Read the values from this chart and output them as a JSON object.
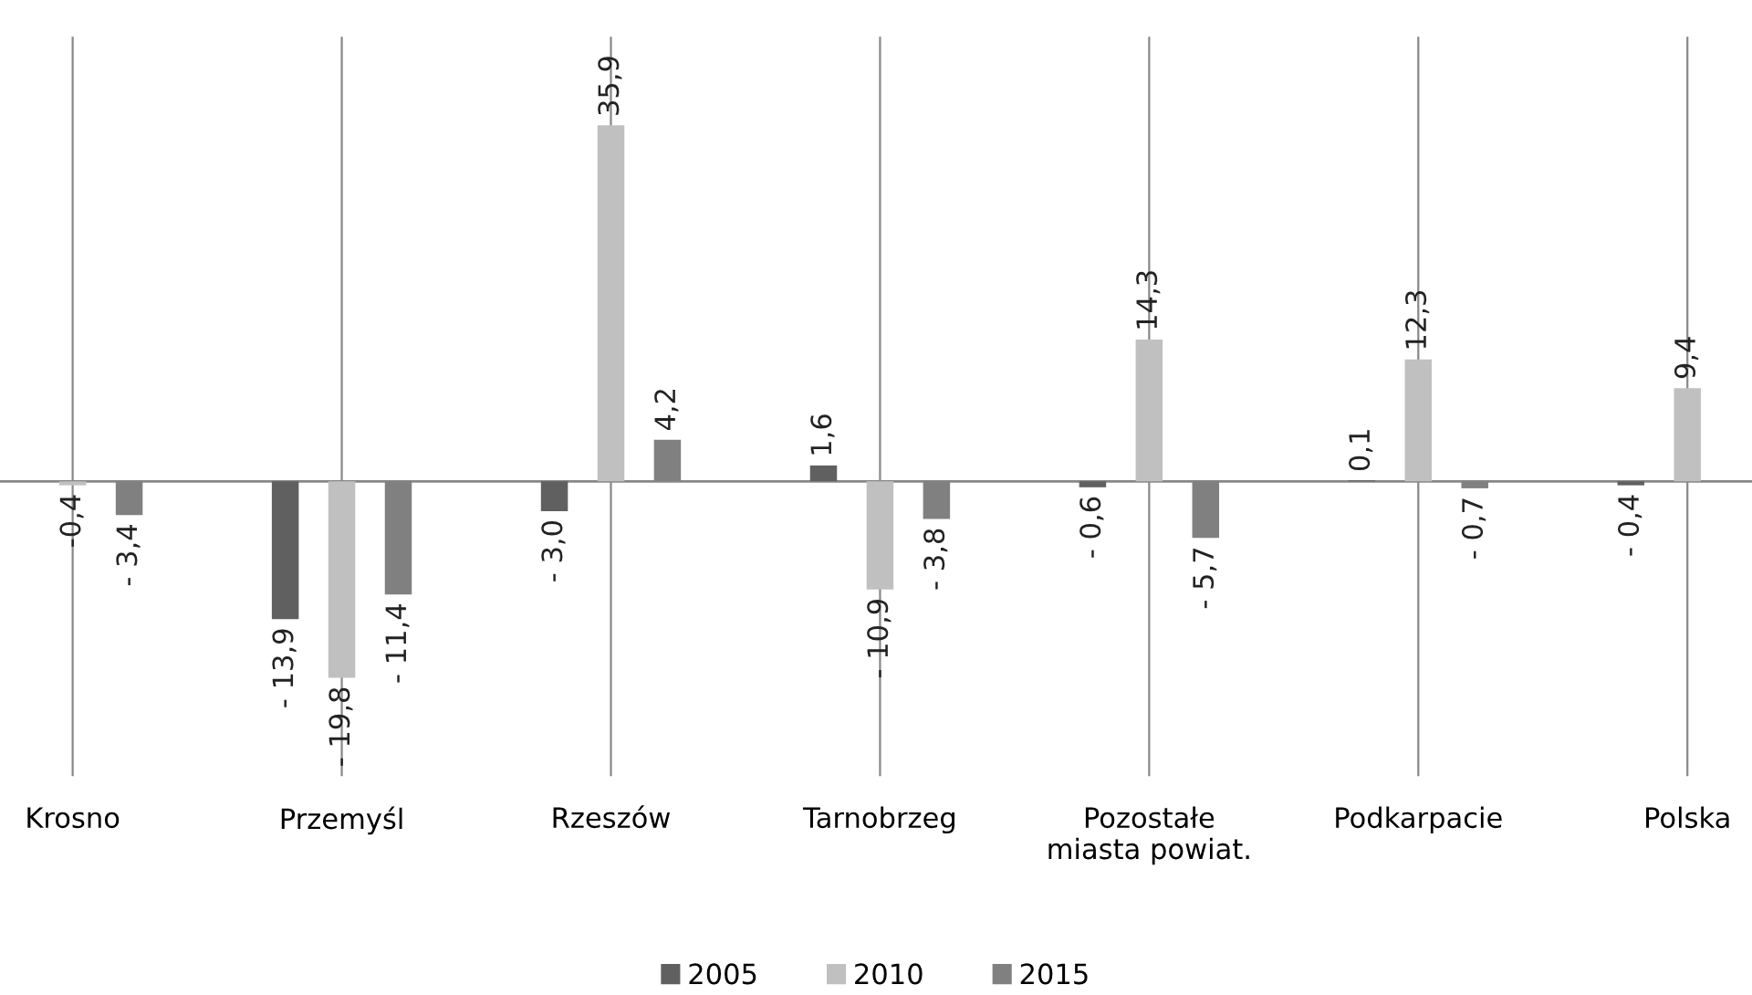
{
  "chart_data": {
    "type": "bar",
    "categories": [
      "Krosno",
      "Przemyśl",
      "Rzeszów",
      "Tarnobrzeg",
      "Pozostałe\nmiasta powiat.",
      "Podkarpacie",
      "Polska"
    ],
    "series": [
      {
        "name": "2005",
        "color": "#606060",
        "values": [
          null,
          -13.9,
          -3.0,
          1.6,
          -0.6,
          0.1,
          -0.4
        ],
        "value_labels": [
          null,
          "- 13,9",
          "- 3,0",
          "1,6",
          "- 0,6",
          "0,1",
          "- 0,4"
        ]
      },
      {
        "name": "2010",
        "color": "#c0c0c0",
        "values": [
          -0.4,
          -19.8,
          35.9,
          -10.9,
          14.3,
          12.3,
          9.4
        ],
        "value_labels": [
          "-0,4",
          "- 19,8",
          "35,9",
          "- 10,9",
          "14,3",
          "12,3",
          "9,4"
        ]
      },
      {
        "name": "2015",
        "color": "#808080",
        "values": [
          -3.4,
          -11.4,
          4.2,
          -3.8,
          -5.7,
          -0.7,
          null
        ],
        "value_labels": [
          "- 3,4",
          "- 11,4",
          "4,2",
          "- 3,8",
          "- 5,7",
          "- 0,7",
          null
        ]
      }
    ],
    "grid": "x",
    "legend": "bottom"
  }
}
